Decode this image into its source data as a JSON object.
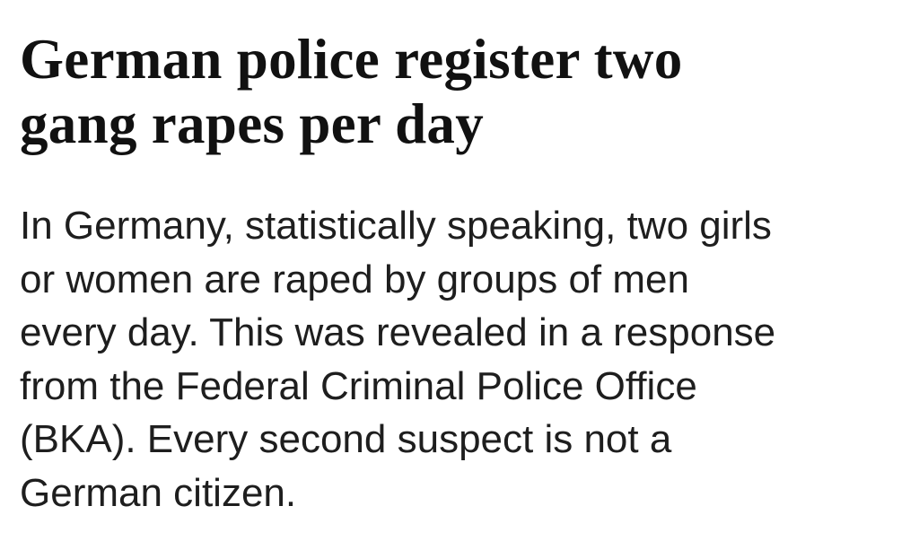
{
  "article": {
    "headline_lines": [
      "German police register two",
      "gang rapes per day"
    ],
    "body_lines": [
      "In Germany, statistically speaking, two girls",
      "or women are raped by groups of men",
      "every day. This was revealed in a response",
      "from the Federal Criminal Police Office",
      "(BKA). Every second suspect is not a",
      "German citizen."
    ]
  }
}
